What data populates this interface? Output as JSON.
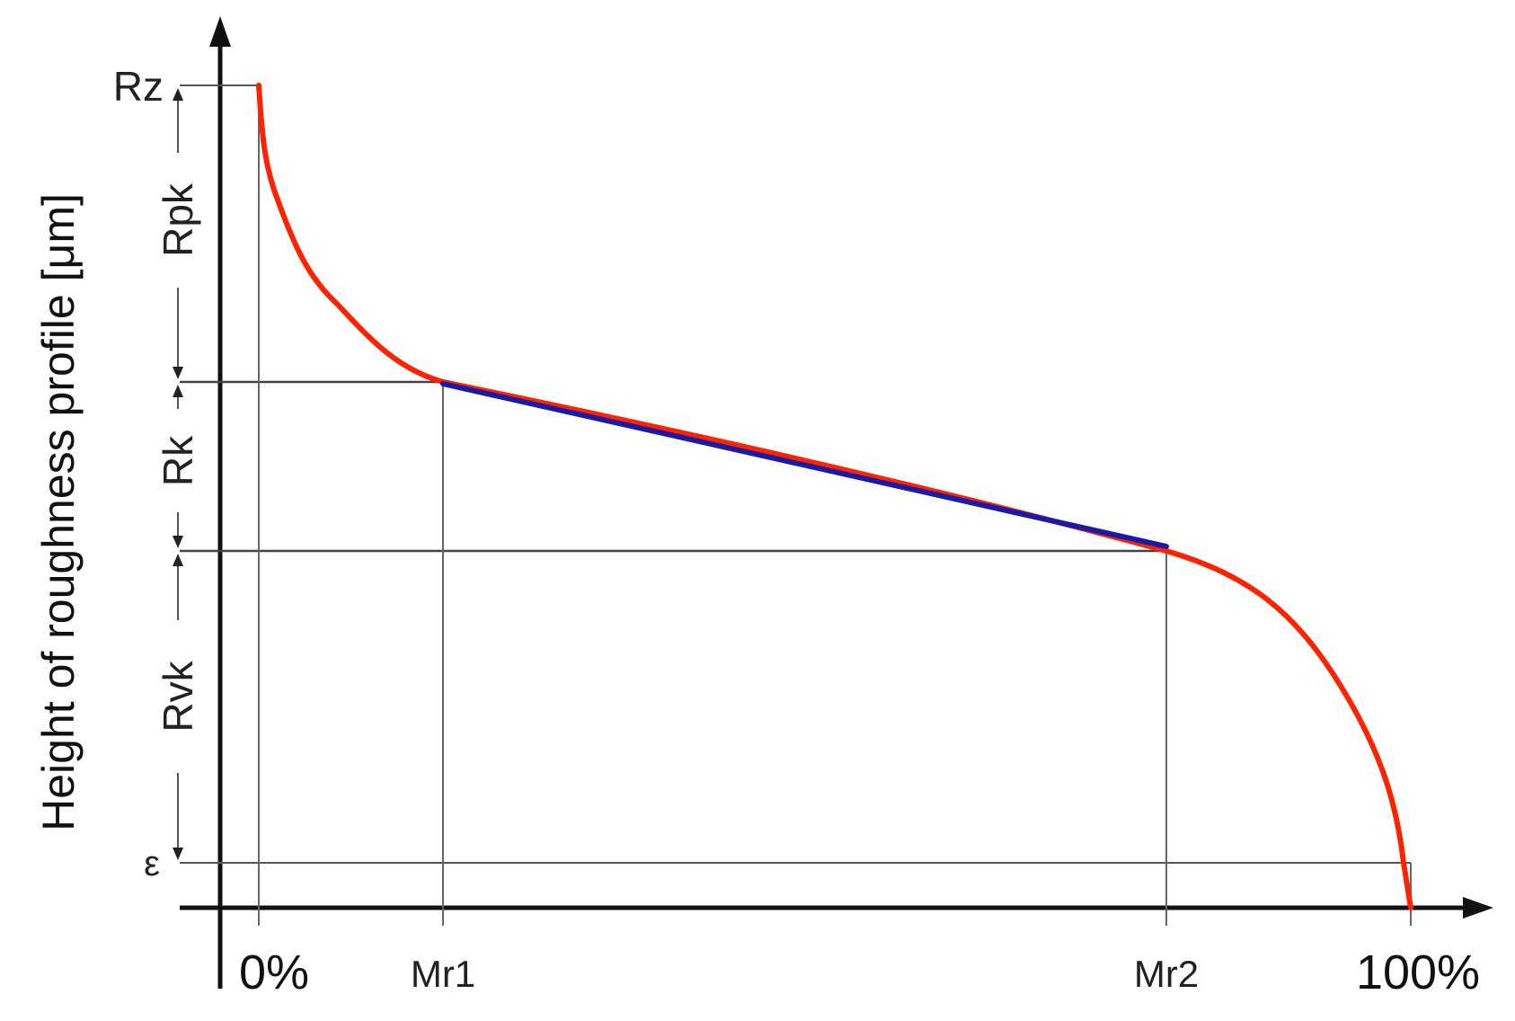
{
  "y_axis_label": "Height of roughness profile [μm]",
  "y_markers": {
    "rz": "Rz",
    "epsilon": "ε"
  },
  "segment_labels": {
    "rpk": "Rpk",
    "rk": "Rk",
    "rvk": "Rvk"
  },
  "x_markers": {
    "zero": "0%",
    "mr1": "Mr1",
    "mr2": "Mr2",
    "hundred": "100%"
  },
  "colors": {
    "curve": "#ff2200",
    "tangent_line": "#1a1aa6",
    "axes": "#111111",
    "guides": "#555555"
  }
}
